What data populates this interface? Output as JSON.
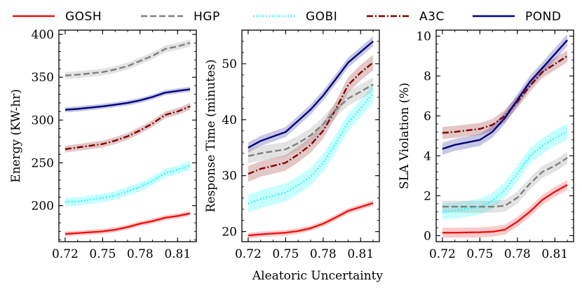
{
  "chart_data": {
    "type": "line",
    "x": [
      0.72,
      0.73,
      0.75,
      0.76,
      0.77,
      0.78,
      0.79,
      0.8,
      0.81,
      0.82
    ],
    "xlim": [
      0.715,
      0.825
    ],
    "xticks": [
      0.72,
      0.75,
      0.78,
      0.81
    ],
    "xtick_labels": [
      "0.72",
      "0.75",
      "0.78",
      "0.81"
    ],
    "xlabel": "Aleatoric Uncertainty",
    "legend": [
      {
        "key": "gosh",
        "name": "GOSH",
        "color": "#ee1111",
        "dash": "solid"
      },
      {
        "key": "hgp",
        "name": "HGP",
        "color": "#808080",
        "dash": "dashed"
      },
      {
        "key": "gobi",
        "name": "GOBI",
        "color": "#00ffff",
        "dash": "dotted"
      },
      {
        "key": "a3c",
        "name": "A3C",
        "color": "#800000",
        "dash": "dashdot"
      },
      {
        "key": "pond",
        "name": "POND",
        "color": "#000080",
        "dash": "solid"
      }
    ],
    "panels": [
      {
        "ylabel": "Energy (KW-hr)",
        "ylim": [
          158,
          405
        ],
        "yticks": [
          200,
          250,
          300,
          350,
          400
        ],
        "ytick_labels": [
          "200",
          "250",
          "300",
          "350",
          "400"
        ],
        "series": [
          {
            "key": "hgp",
            "name": "HGP",
            "values": [
              352,
              353,
              356,
              359,
              363,
              369,
              375,
              383,
              386,
              390
            ],
            "band": 4
          },
          {
            "key": "pond",
            "name": "POND",
            "values": [
              312,
              313,
              316,
              318,
              320,
              323,
              327,
              332,
              334,
              336
            ],
            "band": 3
          },
          {
            "key": "a3c",
            "name": "A3C",
            "values": [
              266,
              268,
              272,
              276,
              281,
              288,
              296,
              306,
              310,
              316
            ],
            "band": 4
          },
          {
            "key": "gobi",
            "name": "GOBI",
            "values": [
              204,
              205,
              209,
              212,
              217,
              222,
              229,
              238,
              242,
              247
            ],
            "band": 5
          },
          {
            "key": "gosh",
            "name": "GOSH",
            "values": [
              167,
              168,
              170,
              172,
              175,
              179,
              182,
              186,
              188,
              191
            ],
            "band": 3
          }
        ]
      },
      {
        "ylabel": "Response Time (minutes)",
        "ylim": [
          18.2,
          56
        ],
        "yticks": [
          20,
          30,
          40,
          50
        ],
        "ytick_labels": [
          "20",
          "30",
          "40",
          "50"
        ],
        "series": [
          {
            "key": "pond",
            "name": "POND",
            "values": [
              35.0,
              36.2,
              37.8,
              39.8,
              41.8,
              44.3,
              47.2,
              50.2,
              52.1,
              54.0
            ],
            "band": 0.9
          },
          {
            "key": "a3c",
            "name": "A3C",
            "values": [
              30.3,
              31.2,
              32.3,
              33.8,
              35.5,
              38.0,
              41.8,
              46.2,
              48.4,
              50.2
            ],
            "band": 1.4
          },
          {
            "key": "hgp",
            "name": "HGP",
            "values": [
              33.5,
              34.0,
              34.7,
              35.8,
              37.2,
              39.2,
              41.7,
              43.8,
              45.0,
              46.3
            ],
            "band": 1.3
          },
          {
            "key": "gobi",
            "name": "GOBI",
            "values": [
              25.0,
              25.8,
              27.0,
              28.3,
              29.8,
              32.3,
              35.7,
              39.5,
              42.0,
              44.7
            ],
            "band": 1.6
          },
          {
            "key": "gosh",
            "name": "GOSH",
            "values": [
              19.3,
              19.5,
              19.8,
              20.1,
              20.6,
              21.4,
              22.5,
              23.7,
              24.4,
              25.1
            ],
            "band": 0.5
          }
        ]
      },
      {
        "ylabel": "SLA Violation (%)",
        "ylim": [
          -0.3,
          10.3
        ],
        "yticks": [
          0,
          2,
          4,
          6,
          8,
          10
        ],
        "ytick_labels": [
          "0",
          "2",
          "4",
          "6",
          "8",
          "10"
        ],
        "series": [
          {
            "key": "a3c",
            "name": "A3C",
            "values": [
              5.15,
              5.2,
              5.35,
              5.55,
              6.0,
              6.7,
              7.5,
              8.2,
              8.6,
              9.0
            ],
            "band": 0.3
          },
          {
            "key": "pond",
            "name": "POND",
            "values": [
              4.35,
              4.55,
              4.8,
              5.2,
              5.9,
              6.8,
              7.7,
              8.4,
              9.1,
              9.8
            ],
            "band": 0.3
          },
          {
            "key": "gobi",
            "name": "GOBI",
            "values": [
              1.2,
              1.25,
              1.45,
              1.75,
              2.3,
              3.1,
              4.0,
              4.5,
              4.9,
              5.2
            ],
            "band": 0.4
          },
          {
            "key": "hgp",
            "name": "HGP",
            "values": [
              1.45,
              1.45,
              1.45,
              1.45,
              1.5,
              1.9,
              2.6,
              3.2,
              3.5,
              3.9
            ],
            "band": 0.3
          },
          {
            "key": "gosh",
            "name": "GOSH",
            "values": [
              0.15,
              0.15,
              0.17,
              0.2,
              0.3,
              0.7,
              1.2,
              1.8,
              2.2,
              2.55
            ],
            "band": 0.25
          }
        ]
      }
    ]
  }
}
